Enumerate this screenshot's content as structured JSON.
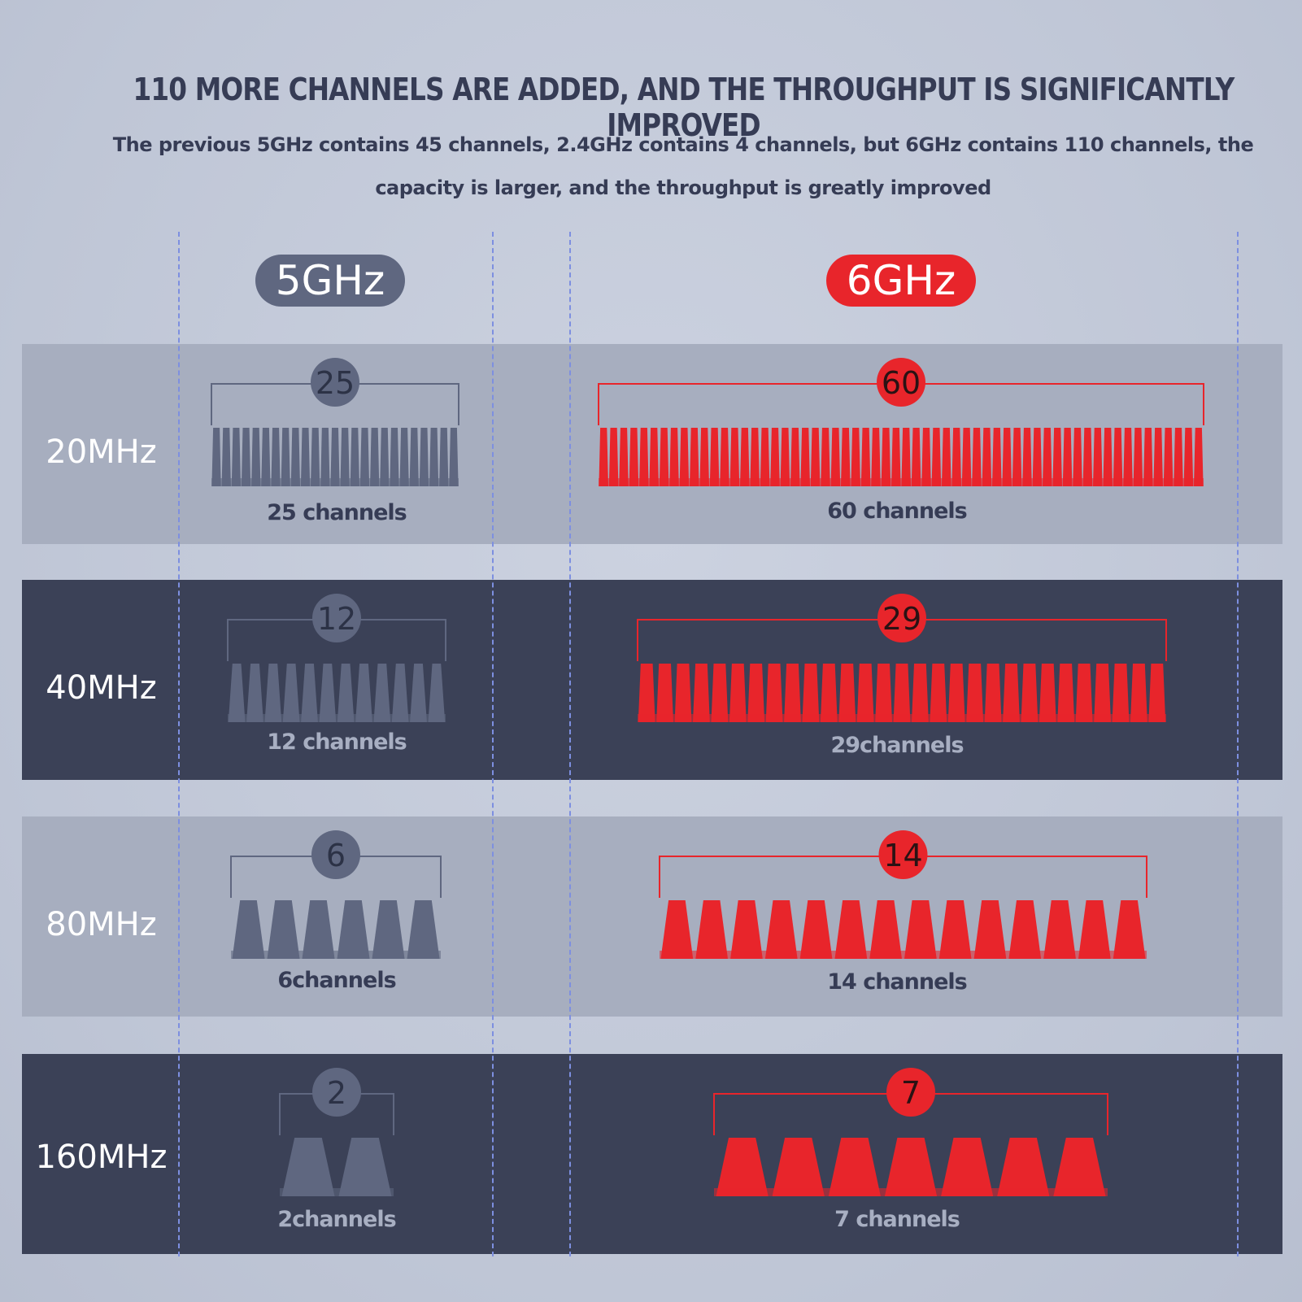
{
  "headline": "110 MORE CHANNELS ARE ADDED, AND THE THROUGHPUT IS SIGNIFICANTLY IMPROVED",
  "subtitle": "The previous 5GHz contains 45 channels, 2.4GHz contains 4 channels, but 6GHz contains 110 channels, the capacity is larger, and the throughput is greatly improved",
  "colors": {
    "band_5ghz": "#5f6780",
    "band_6ghz": "#e8252b",
    "row_light": "#a7aebf",
    "row_dark": "#3b4157"
  },
  "chart_data": {
    "type": "bar",
    "title": "",
    "series": [
      {
        "name": "5GHz",
        "values": [
          25,
          12,
          6,
          2
        ]
      },
      {
        "name": "6GHz",
        "values": [
          60,
          29,
          14,
          7
        ]
      }
    ],
    "categories": [
      "20MHz",
      "40MHz",
      "80MHz",
      "160MHz"
    ],
    "captions_5ghz": [
      "25 channels",
      "12 channels",
      "6channels",
      "2channels"
    ],
    "captions_6ghz": [
      "60 channels",
      "29channels",
      "14 channels",
      "7 channels"
    ],
    "badges_5ghz": [
      "25",
      "12",
      "6",
      "2"
    ],
    "badges_6ghz": [
      "60",
      "29",
      "14",
      "7"
    ]
  }
}
